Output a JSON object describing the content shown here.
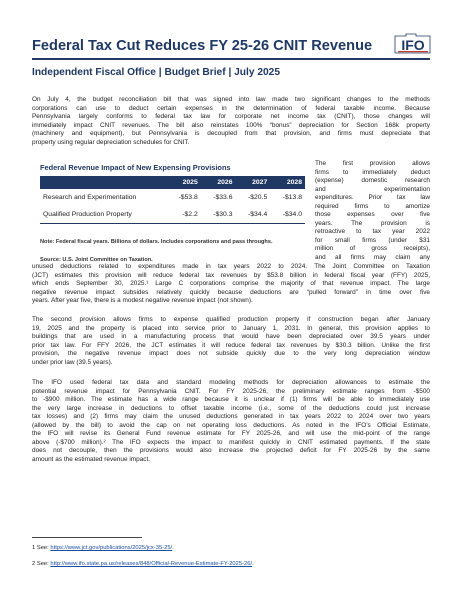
{
  "header": {
    "title": "Federal Tax Cut Reduces FY 25-26 CNIT Revenue",
    "logo_text": "IFO",
    "subtitle": "Independent Fiscal Office  |  Budget Brief  |  July 2025"
  },
  "colors": {
    "brand": "#1f3864",
    "accent": "#c0392b",
    "link": "#1a4fa0"
  },
  "intro": [
    "On July 4, the budget reconciliation bill that was signed into law made two significant changes to the methods",
    "corporations can use to deduct certain expenses in the determination of federal taxable income. Because",
    "Pennsylvania largely conforms to federal tax law for corporate net income tax (CNIT), those changes will",
    "immediately impact CNIT revenues. The bill also reinstates 100% “bonus” depreciation for Section 168k property",
    "(machinery and equipment), but Pennsylvania is decoupled from that provision, and firms must depreciate that",
    "property using regular depreciation schedules for CNIT."
  ],
  "table": {
    "title": "Federal Revenue Impact of New Expensing Provisions",
    "columns": [
      "",
      "2025",
      "2026",
      "2027",
      "2028"
    ],
    "rows": [
      [
        "Research and Experimentation",
        "-$53.8",
        "-$33.6",
        "-$20.5",
        "-$13.8"
      ],
      [
        "Qualified Production Property",
        "-$2.2",
        "-$30.3",
        "-$34.4",
        "-$34.0"
      ]
    ],
    "note": "Note: Federal fiscal years. Billions of dollars. Includes corporations and pass throughs.",
    "source": "Source: U.S. Joint Committee on Taxation."
  },
  "side_text": [
    "The first provision allows",
    "firms to immediately deduct",
    "(expense) domestic research",
    "and         experimentation",
    "expenditures. Prior tax law",
    "required firms to amortize",
    "those expenses over five",
    "years.    The    provision    is",
    "retroactive to tax year 2022",
    "for small firms (under $31",
    "million of gross receipts),",
    "and all firms may claim any"
  ],
  "para1_cont": [
    "unused deductions related to expenditures made in tax years 2022 to 2024. The Joint Committee on Taxation",
    "(JCT) estimates this provision will reduce federal tax revenues by $53.8 billion in federal fiscal year (FFY) 2025,",
    "which ends September 30, 2025.¹ Large C corporations comprise the majority of that revenue impact. The large",
    "negative revenue impact subsides relatively quickly because deductions are “pulled forward” in time over five",
    "years. After year five, there is a modest negative revenue impact (not shown)."
  ],
  "para2": [
    "The second provision allows firms to expense qualified production property if construction began after January",
    "19, 2025 and the property is placed into service prior to January 1, 2031. In general, this provision applies to",
    "buildings that are used in a manufacturing process that would have been depreciated over 39.5 years under",
    "prior tax law. For FFY 2026, the JCT estimates it will reduce federal tax revenues by $30.3 billion. Unlike the first",
    "provision, the negative revenue impact does not subside quickly due to the very long depreciation window",
    "under prior law (39.5 years)."
  ],
  "para3": [
    "The IFO used federal tax data and standard modeling methods for depreciation allowances to estimate the",
    "potential revenue impact for Pennsylvania CNIT. For FY 2025-26, the preliminary estimate ranges from -$500",
    "to -$900 million. The estimate has a wide range because it is unclear if (1) firms will be able to immediately use",
    "the very large increase in deductions to offset taxable income (i.e., some of the deductions could just increase",
    "tax losses) and (2) firms may claim the unused deductions generated in tax years 2022 to 2024 over two years",
    "(allowed by the bill) to avoid the cap on net operating loss deductions. As noted in the IFO’s Official Estimate,",
    "the IFO will revise its General Fund revenue estimate for FY 2025-26, and will use the mid-point of the range",
    "above (-$700 million).² The IFO expects the impact to manifest quickly in CNIT estimated payments. If the state",
    "does not decouple, then the provisions would also increase the projected deficit for FY 2025-26 by the same",
    "amount as the estimated revenue impact."
  ],
  "footnotes": [
    {
      "prefix": "1 See: ",
      "link": "https://www.jct.gov/publications/2025/jcx-35-25/",
      "suffix": "."
    },
    {
      "prefix": "2 See: ",
      "link": "http://www.ifo.state.pa.us/releases/848/Official-Revenue-Estimate-FY-2025-26/",
      "suffix": "."
    }
  ]
}
